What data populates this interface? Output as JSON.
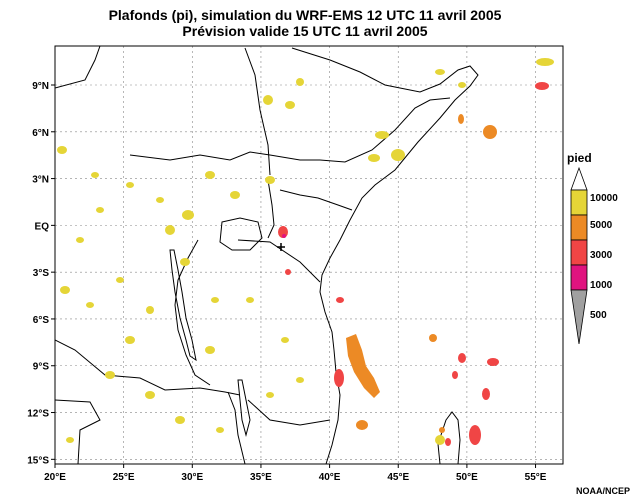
{
  "title": {
    "line1": "Plafonds (pi), simulation du WRF-EMS 12 UTC 11 avril 2005",
    "line2": "Prévision valide 15 UTC 11 avril 2005"
  },
  "map": {
    "lon_range": [
      20,
      57
    ],
    "lat_range": [
      -15.3,
      11.5
    ],
    "lat_ticks": [
      {
        "lat": 9,
        "label": "9°N"
      },
      {
        "lat": 6,
        "label": "6°N"
      },
      {
        "lat": 3,
        "label": "3°N"
      },
      {
        "lat": 0,
        "label": "EQ"
      },
      {
        "lat": -3,
        "label": "3°S"
      },
      {
        "lat": -6,
        "label": "6°S"
      },
      {
        "lat": -9,
        "label": "9°S"
      },
      {
        "lat": -12,
        "label": "12°S"
      },
      {
        "lat": -15,
        "label": "15°S"
      }
    ],
    "lon_ticks": [
      {
        "lon": 20,
        "label": "20°E"
      },
      {
        "lon": 25,
        "label": "25°E"
      },
      {
        "lon": 30,
        "label": "30°E"
      },
      {
        "lon": 35,
        "label": "35°E"
      },
      {
        "lon": 40,
        "label": "40°E"
      },
      {
        "lon": 45,
        "label": "45°E"
      },
      {
        "lon": 50,
        "label": "50°E"
      },
      {
        "lon": 55,
        "label": "55°E"
      }
    ],
    "grid": "dashed",
    "colors": {
      "10000": "#e5d537",
      "5000": "#ec8a25",
      "3000": "#f04545",
      "1000": "#e0137f",
      "500": "#a0a0a0"
    }
  },
  "legend": {
    "title": "pied",
    "labels": [
      "10000",
      "5000",
      "3000",
      "1000",
      "500"
    ]
  },
  "credit": "NOAA/NCEP"
}
